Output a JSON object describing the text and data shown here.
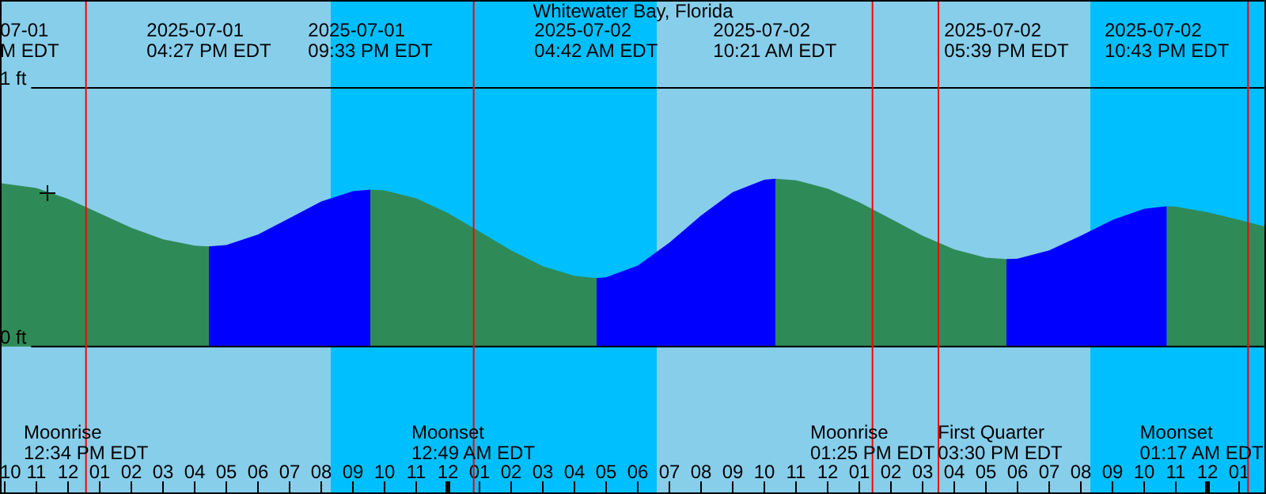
{
  "chart_data": {
    "type": "area",
    "title": "Whitewater Bay, Florida",
    "series": [
      {
        "type": "area",
        "color": "#2e8b57",
        "x": [
          "2025-07-01T09:51",
          "2025-07-01T11:00",
          "2025-07-01T12:00",
          "2025-07-01T13:00",
          "2025-07-01T14:00",
          "2025-07-01T15:00",
          "2025-07-01T16:00",
          "2025-07-01T16:27"
        ],
        "values": [
          0.632,
          0.613,
          0.571,
          0.515,
          0.459,
          0.415,
          0.39,
          0.387
        ]
      },
      {
        "type": "area",
        "color": "#0000ff",
        "x": [
          "2025-07-01T16:27",
          "2025-07-01T17:00",
          "2025-07-01T18:00",
          "2025-07-01T19:00",
          "2025-07-01T20:00",
          "2025-07-01T21:00",
          "2025-07-01T21:33"
        ],
        "values": [
          0.387,
          0.393,
          0.433,
          0.497,
          0.561,
          0.601,
          0.607
        ]
      },
      {
        "color": "#2e8b57",
        "x": [
          "2025-07-01T21:33",
          "2025-07-01T22:00",
          "2025-07-01T23:00",
          "2025-07-02T00:00",
          "2025-07-02T01:00",
          "2025-07-02T02:00",
          "2025-07-02T03:00",
          "2025-07-02T04:00",
          "2025-07-02T04:42"
        ],
        "values": [
          0.607,
          0.604,
          0.573,
          0.517,
          0.445,
          0.372,
          0.311,
          0.273,
          0.265
        ]
      },
      {
        "color": "#0000ff",
        "x": [
          "2025-07-02T04:42",
          "2025-07-02T05:00",
          "2025-07-02T06:00",
          "2025-07-02T07:00",
          "2025-07-02T08:00",
          "2025-07-02T09:00",
          "2025-07-02T10:00",
          "2025-07-02T10:21"
        ],
        "values": [
          0.265,
          0.268,
          0.313,
          0.402,
          0.507,
          0.597,
          0.645,
          0.649
        ]
      },
      {
        "color": "#2e8b57",
        "x": [
          "2025-07-02T10:21",
          "2025-07-02T11:00",
          "2025-07-02T12:00",
          "2025-07-02T13:00",
          "2025-07-02T14:00",
          "2025-07-02T15:00",
          "2025-07-02T16:00",
          "2025-07-02T17:00",
          "2025-07-02T17:39"
        ],
        "values": [
          0.649,
          0.643,
          0.611,
          0.558,
          0.494,
          0.429,
          0.376,
          0.344,
          0.338
        ]
      },
      {
        "color": "#0000ff",
        "x": [
          "2025-07-02T17:39",
          "2025-07-02T18:00",
          "2025-07-02T19:00",
          "2025-07-02T20:00",
          "2025-07-02T21:00",
          "2025-07-02T22:00",
          "2025-07-02T22:43"
        ],
        "values": [
          0.338,
          0.34,
          0.372,
          0.429,
          0.49,
          0.533,
          0.543
        ]
      },
      {
        "color": "#2e8b57",
        "x": [
          "2025-07-02T22:43",
          "2025-07-02T23:00",
          "2025-07-03T00:00",
          "2025-07-03T01:00",
          "2025-07-03T01:51"
        ],
        "values": [
          0.543,
          0.541,
          0.52,
          0.49,
          0.463
        ]
      }
    ],
    "xlim": [
      "2025-07-01T09:51",
      "2025-07-03T01:51"
    ],
    "xticks": [
      {
        "value": "2025-07-01T10:00",
        "label": "10"
      },
      {
        "value": "2025-07-01T11:00",
        "label": "11"
      },
      {
        "value": "2025-07-01T12:00",
        "label": "12"
      },
      {
        "value": "2025-07-01T13:00",
        "label": "01"
      },
      {
        "value": "2025-07-01T14:00",
        "label": "02"
      },
      {
        "value": "2025-07-01T15:00",
        "label": "03"
      },
      {
        "value": "2025-07-01T16:00",
        "label": "04"
      },
      {
        "value": "2025-07-01T17:00",
        "label": "05"
      },
      {
        "value": "2025-07-01T18:00",
        "label": "06"
      },
      {
        "value": "2025-07-01T19:00",
        "label": "07"
      },
      {
        "value": "2025-07-01T20:00",
        "label": "08"
      },
      {
        "value": "2025-07-01T21:00",
        "label": "09"
      },
      {
        "value": "2025-07-01T22:00",
        "label": "10"
      },
      {
        "value": "2025-07-01T23:00",
        "label": "11"
      },
      {
        "value": "2025-07-02T00:00",
        "label": "12"
      },
      {
        "value": "2025-07-02T01:00",
        "label": "01"
      },
      {
        "value": "2025-07-02T02:00",
        "label": "02"
      },
      {
        "value": "2025-07-02T03:00",
        "label": "03"
      },
      {
        "value": "2025-07-02T04:00",
        "label": "04"
      },
      {
        "value": "2025-07-02T05:00",
        "label": "05"
      },
      {
        "value": "2025-07-02T06:00",
        "label": "06"
      },
      {
        "value": "2025-07-02T07:00",
        "label": "07"
      },
      {
        "value": "2025-07-02T08:00",
        "label": "08"
      },
      {
        "value": "2025-07-02T09:00",
        "label": "09"
      },
      {
        "value": "2025-07-02T10:00",
        "label": "10"
      },
      {
        "value": "2025-07-02T11:00",
        "label": "11"
      },
      {
        "value": "2025-07-02T12:00",
        "label": "12"
      },
      {
        "value": "2025-07-02T13:00",
        "label": "01"
      },
      {
        "value": "2025-07-02T14:00",
        "label": "02"
      },
      {
        "value": "2025-07-02T15:00",
        "label": "03"
      },
      {
        "value": "2025-07-02T16:00",
        "label": "04"
      },
      {
        "value": "2025-07-02T17:00",
        "label": "05"
      },
      {
        "value": "2025-07-02T18:00",
        "label": "06"
      },
      {
        "value": "2025-07-02T19:00",
        "label": "07"
      },
      {
        "value": "2025-07-02T20:00",
        "label": "08"
      },
      {
        "value": "2025-07-02T21:00",
        "label": "09"
      },
      {
        "value": "2025-07-02T22:00",
        "label": "10"
      },
      {
        "value": "2025-07-02T23:00",
        "label": "11"
      },
      {
        "value": "2025-07-03T00:00",
        "label": "12"
      },
      {
        "value": "2025-07-03T01:00",
        "label": "01"
      }
    ],
    "ylim": [
      -0.57,
      1.34
    ],
    "yticks": [
      {
        "value": 0,
        "label": "0 ft"
      },
      {
        "value": 1,
        "label": "1 ft"
      }
    ],
    "grid": "y",
    "bands": [
      {
        "axis": "x",
        "from": "2025-07-01T09:51",
        "to": "2025-07-01T20:18",
        "color": "#87ceeb"
      },
      {
        "axis": "x",
        "from": "2025-07-01T20:18",
        "to": "2025-07-02T06:36",
        "color": "#00bfff"
      },
      {
        "axis": "x",
        "from": "2025-07-02T06:36",
        "to": "2025-07-02T20:18",
        "color": "#87ceeb"
      },
      {
        "axis": "x",
        "from": "2025-07-02T20:18",
        "to": "2025-07-03T01:51",
        "color": "#00bfff"
      }
    ],
    "ref_lines": [
      {
        "axis": "x",
        "value": "2025-07-01T12:34",
        "label": "Moonrise\n12:34 PM EDT",
        "color": "#ff0000"
      },
      {
        "axis": "x",
        "value": "2025-07-02T00:49",
        "label": "Moonset\n12:49 AM EDT",
        "color": "#ff0000"
      },
      {
        "axis": "x",
        "value": "2025-07-02T13:25",
        "label": "Moonrise\n01:25 PM EDT",
        "color": "#ff0000"
      },
      {
        "axis": "x",
        "value": "2025-07-02T15:30",
        "label": "First Quarter\n03:30 PM EDT",
        "color": "#ff0000"
      },
      {
        "axis": "x",
        "value": "2025-07-03T01:17",
        "label": "Moonset\n01:17 AM EDT",
        "color": "#ff0000"
      }
    ],
    "annotations": [
      "07-01\nM EDT",
      "2025-07-01\n04:27 PM EDT",
      "2025-07-01\n09:33 PM EDT",
      "2025-07-02\n04:42 AM EDT",
      "2025-07-02\n10:21 AM EDT",
      "2025-07-02\n05:39 PM EDT",
      "2025-07-02\n10:43 PM EDT"
    ]
  }
}
